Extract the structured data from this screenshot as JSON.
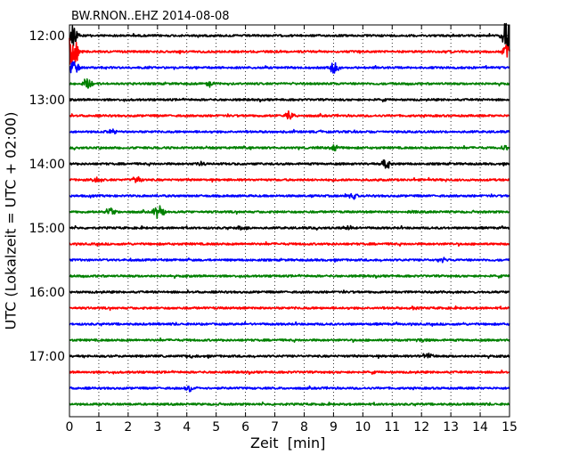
{
  "chart_data": {
    "type": "line",
    "title": "BW.RNON..EHZ 2014-08-08",
    "xlabel": "Zeit  [min]",
    "ylabel": "UTC (Lokalzeit = UTC + 02:00)",
    "xlim": [
      0,
      15
    ],
    "x_ticks": [
      "0",
      "1",
      "2",
      "3",
      "4",
      "5",
      "6",
      "7",
      "8",
      "9",
      "10",
      "11",
      "12",
      "13",
      "14",
      "15"
    ],
    "y_ticks": [
      "12:00",
      "13:00",
      "14:00",
      "15:00",
      "16:00",
      "17:00"
    ],
    "grid": "vertical dotted",
    "traces_per_hour": 4,
    "trace_colors": [
      "#000000",
      "#ff0000",
      "#0000ff",
      "#008000"
    ],
    "series": [
      {
        "start": "12:00",
        "color": "#000000",
        "events": [
          {
            "t": 0.1,
            "amp": 2.5
          },
          {
            "t": 14.9,
            "amp": 3.0
          }
        ]
      },
      {
        "start": "12:15",
        "color": "#ff0000",
        "events": [
          {
            "t": 0.1,
            "amp": 4.0
          },
          {
            "t": 14.9,
            "amp": 1.2
          }
        ]
      },
      {
        "start": "12:30",
        "color": "#0000ff",
        "events": [
          {
            "t": 0.15,
            "amp": 1.5
          },
          {
            "t": 9.0,
            "amp": 1.2
          }
        ]
      },
      {
        "start": "12:45",
        "color": "#008000",
        "events": [
          {
            "t": 0.6,
            "amp": 1.0
          },
          {
            "t": 4.8,
            "amp": 0.5
          }
        ]
      },
      {
        "start": "13:00",
        "color": "#000000",
        "events": []
      },
      {
        "start": "13:15",
        "color": "#ff0000",
        "events": [
          {
            "t": 7.5,
            "amp": 0.8
          }
        ]
      },
      {
        "start": "13:30",
        "color": "#0000ff",
        "events": [
          {
            "t": 1.5,
            "amp": 0.5
          }
        ]
      },
      {
        "start": "13:45",
        "color": "#008000",
        "events": [
          {
            "t": 9.0,
            "amp": 0.6
          },
          {
            "t": 14.8,
            "amp": 0.4
          }
        ]
      },
      {
        "start": "14:00",
        "color": "#000000",
        "events": [
          {
            "t": 10.8,
            "amp": 1.0
          },
          {
            "t": 4.5,
            "amp": 0.4
          }
        ]
      },
      {
        "start": "14:15",
        "color": "#ff0000",
        "events": [
          {
            "t": 0.9,
            "amp": 0.6
          },
          {
            "t": 2.3,
            "amp": 0.5
          }
        ]
      },
      {
        "start": "14:30",
        "color": "#0000ff",
        "events": [
          {
            "t": 9.7,
            "amp": 0.6
          }
        ]
      },
      {
        "start": "14:45",
        "color": "#008000",
        "events": [
          {
            "t": 1.4,
            "amp": 0.7
          },
          {
            "t": 3.05,
            "amp": 1.2
          },
          {
            "t": 11.7,
            "amp": 0.4
          }
        ]
      },
      {
        "start": "15:00",
        "color": "#000000",
        "events": [
          {
            "t": 5.9,
            "amp": 0.4
          },
          {
            "t": 9.5,
            "amp": 0.4
          }
        ]
      },
      {
        "start": "15:15",
        "color": "#ff0000",
        "events": []
      },
      {
        "start": "15:30",
        "color": "#0000ff",
        "events": [
          {
            "t": 12.7,
            "amp": 0.4
          }
        ]
      },
      {
        "start": "15:45",
        "color": "#008000",
        "events": []
      },
      {
        "start": "16:00",
        "color": "#000000",
        "events": []
      },
      {
        "start": "16:15",
        "color": "#ff0000",
        "events": [
          {
            "t": 11.7,
            "amp": 0.4
          }
        ]
      },
      {
        "start": "16:30",
        "color": "#0000ff",
        "events": []
      },
      {
        "start": "16:45",
        "color": "#008000",
        "events": [
          {
            "t": 12.0,
            "amp": 0.4
          }
        ]
      },
      {
        "start": "17:00",
        "color": "#000000",
        "events": [
          {
            "t": 12.2,
            "amp": 0.6
          },
          {
            "t": 4.1,
            "amp": 0.3
          }
        ]
      },
      {
        "start": "17:15",
        "color": "#ff0000",
        "events": []
      },
      {
        "start": "17:30",
        "color": "#0000ff",
        "events": [
          {
            "t": 4.1,
            "amp": 0.6
          }
        ]
      },
      {
        "start": "17:45",
        "color": "#008000",
        "events": []
      }
    ]
  }
}
